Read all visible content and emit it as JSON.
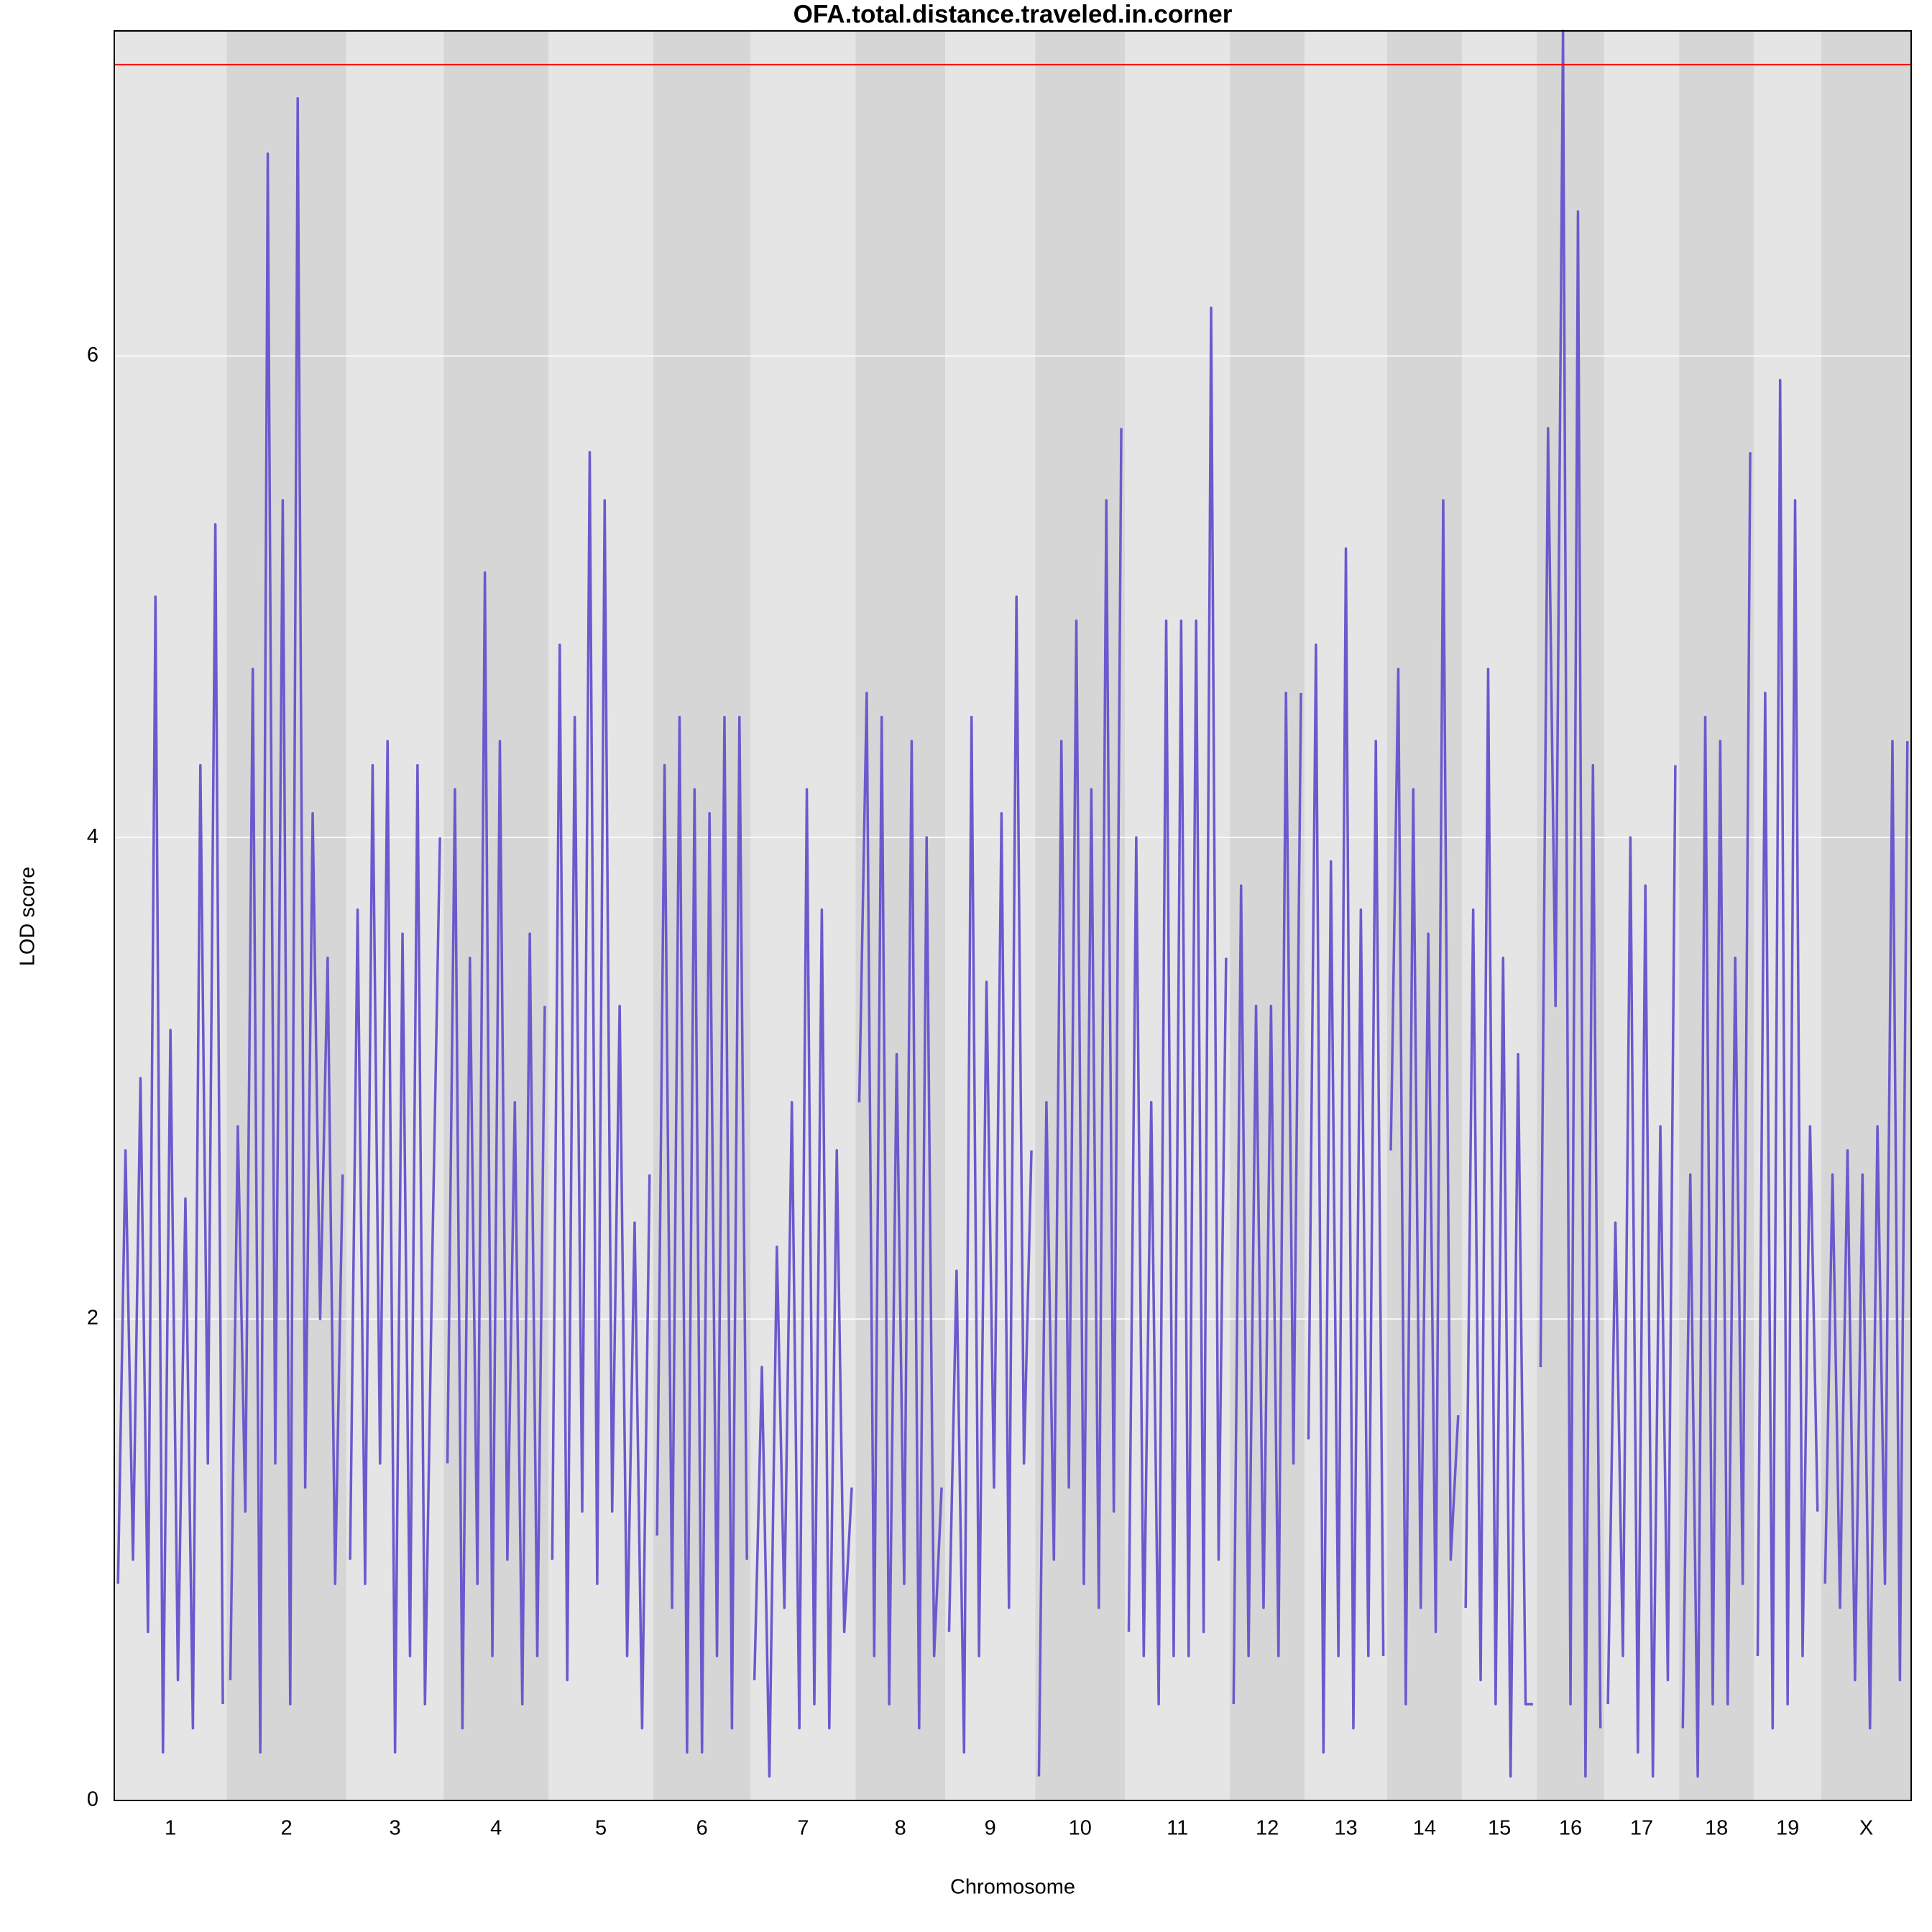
{
  "chart_data": {
    "type": "lod",
    "title": "OFA.total.distance.traveled.in.corner",
    "x_label": "Chromosome",
    "y_label": "LOD score",
    "ylim": [
      0,
      7.35
    ],
    "yticks": [
      0,
      2,
      4,
      6
    ],
    "grid": true,
    "threshold": 7.21,
    "threshold_color": "#ff0000",
    "color": "#6a5acd",
    "chromosomes": [
      {
        "name": "1",
        "values": [
          0.9,
          2.7,
          1.0,
          3.0,
          0.7,
          5.0,
          0.2,
          3.2,
          0.5,
          2.5,
          0.3,
          4.3,
          1.4,
          5.3,
          0.4
        ]
      },
      {
        "name": "2",
        "values": [
          0.5,
          2.8,
          1.2,
          4.7,
          0.2,
          6.84,
          1.4,
          5.4,
          0.4,
          7.07,
          1.3,
          4.1,
          2.0,
          3.5,
          0.9,
          2.6
        ]
      },
      {
        "name": "3",
        "values": [
          1.0,
          3.7,
          0.9,
          4.3,
          1.4,
          4.4,
          0.2,
          3.6,
          0.6,
          4.3,
          0.4,
          2.3,
          4.0
        ]
      },
      {
        "name": "4",
        "values": [
          1.4,
          4.2,
          0.3,
          3.5,
          0.9,
          5.1,
          0.6,
          4.4,
          1.0,
          2.9,
          0.4,
          3.6,
          0.6,
          3.3
        ]
      },
      {
        "name": "5",
        "values": [
          1.0,
          4.8,
          0.5,
          4.5,
          1.2,
          5.6,
          0.9,
          5.4,
          1.2,
          3.3,
          0.6,
          2.4,
          0.3,
          2.6
        ]
      },
      {
        "name": "6",
        "values": [
          1.1,
          4.3,
          0.8,
          4.5,
          0.2,
          4.2,
          0.2,
          4.1,
          0.6,
          4.5,
          0.3,
          4.5,
          1.0
        ]
      },
      {
        "name": "7",
        "values": [
          0.5,
          1.8,
          0.1,
          2.3,
          0.8,
          2.9,
          0.3,
          4.2,
          0.4,
          3.7,
          0.3,
          2.7,
          0.7,
          1.3
        ]
      },
      {
        "name": "8",
        "values": [
          2.9,
          4.6,
          0.6,
          4.5,
          0.4,
          3.1,
          0.9,
          4.4,
          0.3,
          4.0,
          0.6,
          1.3
        ]
      },
      {
        "name": "9",
        "values": [
          0.7,
          2.2,
          0.2,
          4.5,
          0.6,
          3.4,
          1.3,
          4.1,
          0.8,
          5.0,
          1.4,
          2.7
        ]
      },
      {
        "name": "10",
        "values": [
          0.1,
          2.9,
          1.0,
          4.4,
          1.3,
          4.9,
          0.9,
          4.2,
          0.8,
          5.4,
          1.2,
          5.7
        ]
      },
      {
        "name": "11",
        "values": [
          0.7,
          4.0,
          0.6,
          2.9,
          0.4,
          4.9,
          0.6,
          4.9,
          0.6,
          4.9,
          0.7,
          6.2,
          1.0,
          3.5
        ]
      },
      {
        "name": "12",
        "values": [
          0.4,
          3.8,
          0.6,
          3.3,
          0.8,
          3.3,
          0.6,
          4.6,
          1.4,
          4.6
        ]
      },
      {
        "name": "13",
        "values": [
          1.5,
          4.8,
          0.2,
          3.9,
          0.6,
          5.2,
          0.3,
          3.7,
          0.6,
          4.4,
          0.6
        ]
      },
      {
        "name": "14",
        "values": [
          2.7,
          4.7,
          0.4,
          4.2,
          0.8,
          3.6,
          0.7,
          5.4,
          1.0,
          1.6
        ]
      },
      {
        "name": "15",
        "values": [
          0.8,
          3.7,
          0.5,
          4.7,
          0.4,
          3.5,
          0.1,
          3.1,
          0.4,
          0.4
        ]
      },
      {
        "name": "16",
        "values": [
          1.8,
          5.7,
          3.3,
          7.35,
          0.4,
          6.6,
          0.1,
          4.3,
          0.3
        ]
      },
      {
        "name": "17",
        "values": [
          0.4,
          2.4,
          0.6,
          4.0,
          0.2,
          3.8,
          0.1,
          2.8,
          0.5,
          4.3
        ]
      },
      {
        "name": "18",
        "values": [
          0.3,
          2.6,
          0.1,
          4.5,
          0.4,
          4.4,
          0.4,
          3.5,
          0.9,
          5.6
        ]
      },
      {
        "name": "19",
        "values": [
          0.6,
          4.6,
          0.3,
          5.9,
          0.4,
          5.4,
          0.6,
          2.8,
          1.2
        ]
      },
      {
        "name": "X",
        "values": [
          0.9,
          2.6,
          0.8,
          2.7,
          0.5,
          2.6,
          0.3,
          2.8,
          0.9,
          4.4,
          0.5,
          4.4
        ]
      }
    ]
  }
}
